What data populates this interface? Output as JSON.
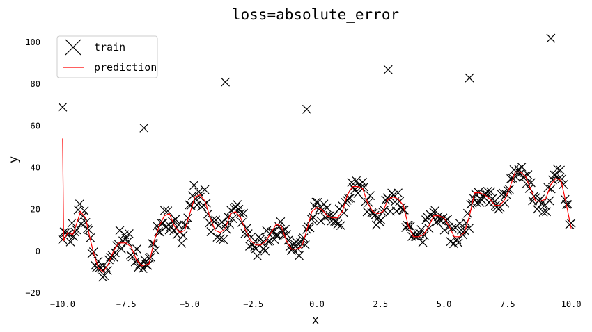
{
  "chart_data": {
    "type": "scatter",
    "title": "loss=absolute_error",
    "xlabel": "x",
    "ylabel": "y",
    "xlim": [
      -10.6,
      10.6
    ],
    "ylim": [
      -21,
      107
    ],
    "xticks": [
      -10.0,
      -7.5,
      -5.0,
      -2.5,
      0.0,
      2.5,
      5.0,
      7.5,
      10.0
    ],
    "xtick_labels": [
      "−10.0",
      "−7.5",
      "−5.0",
      "−2.5",
      "0.0",
      "2.5",
      "5.0",
      "7.5",
      "10.0"
    ],
    "yticks": [
      -20,
      0,
      20,
      40,
      60,
      80,
      100
    ],
    "ytick_labels": [
      "−20",
      "0",
      "20",
      "40",
      "60",
      "80",
      "100"
    ],
    "grid": false,
    "legend": {
      "position": "top-left",
      "entries": [
        "train",
        "prediction"
      ]
    },
    "colors": {
      "train": "#000000",
      "prediction": "#ff0000"
    },
    "outliers": [
      [
        -10.0,
        69
      ],
      [
        -6.8,
        59
      ],
      [
        -3.6,
        81
      ],
      [
        -0.4,
        68
      ],
      [
        2.8,
        87
      ],
      [
        6.0,
        83
      ],
      [
        9.2,
        102
      ]
    ],
    "prediction": [
      [
        -10.0,
        54
      ],
      [
        -9.96,
        5
      ],
      [
        -9.8,
        9
      ],
      [
        -9.6,
        8
      ],
      [
        -9.4,
        15
      ],
      [
        -9.3,
        19
      ],
      [
        -9.1,
        16
      ],
      [
        -8.9,
        5
      ],
      [
        -8.8,
        0
      ],
      [
        -8.6,
        -8
      ],
      [
        -8.4,
        -10
      ],
      [
        -8.2,
        -6
      ],
      [
        -8.0,
        0
      ],
      [
        -7.8,
        4
      ],
      [
        -7.5,
        4
      ],
      [
        -7.3,
        2
      ],
      [
        -7.1,
        -4
      ],
      [
        -6.9,
        -7
      ],
      [
        -6.6,
        -6
      ],
      [
        -6.4,
        5
      ],
      [
        -6.2,
        12
      ],
      [
        -6.0,
        17
      ],
      [
        -5.8,
        18
      ],
      [
        -5.6,
        12
      ],
      [
        -5.4,
        9
      ],
      [
        -5.2,
        10
      ],
      [
        -5.0,
        18
      ],
      [
        -4.8,
        26
      ],
      [
        -4.6,
        27
      ],
      [
        -4.4,
        24
      ],
      [
        -4.2,
        16
      ],
      [
        -4.0,
        10
      ],
      [
        -3.8,
        9
      ],
      [
        -3.6,
        11
      ],
      [
        -3.4,
        18
      ],
      [
        -3.2,
        19
      ],
      [
        -3.0,
        16
      ],
      [
        -2.8,
        10
      ],
      [
        -2.6,
        5
      ],
      [
        -2.4,
        3
      ],
      [
        -2.2,
        3
      ],
      [
        -2.0,
        5
      ],
      [
        -1.8,
        9
      ],
      [
        -1.6,
        13
      ],
      [
        -1.4,
        12
      ],
      [
        -1.2,
        5
      ],
      [
        -1.0,
        1
      ],
      [
        -0.8,
        1
      ],
      [
        -0.6,
        2
      ],
      [
        -0.4,
        10
      ],
      [
        -0.2,
        19
      ],
      [
        0.0,
        21
      ],
      [
        0.2,
        20
      ],
      [
        0.4,
        17
      ],
      [
        0.6,
        16
      ],
      [
        0.8,
        16
      ],
      [
        1.0,
        19
      ],
      [
        1.2,
        27
      ],
      [
        1.4,
        31
      ],
      [
        1.6,
        31
      ],
      [
        1.8,
        30
      ],
      [
        2.0,
        23
      ],
      [
        2.2,
        19
      ],
      [
        2.4,
        18
      ],
      [
        2.6,
        19
      ],
      [
        2.8,
        25
      ],
      [
        3.0,
        26
      ],
      [
        3.2,
        25
      ],
      [
        3.4,
        22
      ],
      [
        3.6,
        12
      ],
      [
        3.8,
        7
      ],
      [
        4.0,
        7
      ],
      [
        4.2,
        8
      ],
      [
        4.4,
        12
      ],
      [
        4.6,
        17
      ],
      [
        4.8,
        17
      ],
      [
        5.0,
        16
      ],
      [
        5.2,
        12
      ],
      [
        5.4,
        7
      ],
      [
        5.6,
        7
      ],
      [
        5.8,
        9
      ],
      [
        6.0,
        17
      ],
      [
        6.2,
        28
      ],
      [
        6.4,
        28
      ],
      [
        6.6,
        27
      ],
      [
        6.8,
        25
      ],
      [
        7.0,
        22
      ],
      [
        7.2,
        22
      ],
      [
        7.4,
        25
      ],
      [
        7.6,
        31
      ],
      [
        7.8,
        38
      ],
      [
        8.0,
        38
      ],
      [
        8.2,
        36
      ],
      [
        8.4,
        30
      ],
      [
        8.6,
        24
      ],
      [
        8.8,
        24
      ],
      [
        9.0,
        25
      ],
      [
        9.2,
        32
      ],
      [
        9.4,
        35
      ],
      [
        9.6,
        34
      ],
      [
        9.8,
        23
      ],
      [
        10.0,
        11
      ]
    ]
  }
}
